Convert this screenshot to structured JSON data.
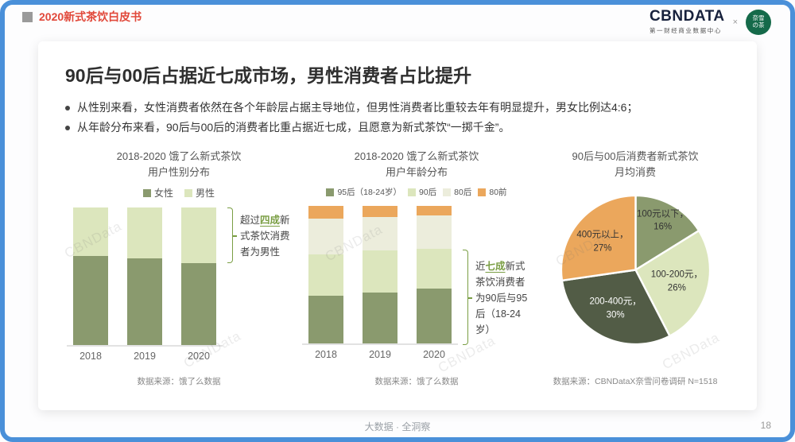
{
  "header": {
    "doc_title": "2020新式茶饮白皮书",
    "brand": "CBNDATA",
    "brand_sub": "第一财经商业数据中心",
    "brand_sep": "×",
    "partner_line1": "奈雪",
    "partner_line2": "の茶"
  },
  "slide": {
    "title": "90后与00后占据近七成市场，男性消费者占比提升",
    "bullets": [
      "从性别来看，女性消费者依然在各个年龄层占据主导地位，但男性消费者比重较去年有明显提升，男女比例达4:6；",
      "从年龄分布来看，90后与00后的消费者比重占据近七成，且愿意为新式茶饮“一掷千金”。"
    ]
  },
  "footer": {
    "tagline": "大数据 · 全洞察",
    "page_number": "18"
  },
  "watermark_text": "CBNData",
  "colors": {
    "border_blue": "#4A90D9",
    "accent_red": "#E1483A",
    "annotation_green": "#7A9E44",
    "logo_green": "#156A4A",
    "dark_olive": "#8A9A6E",
    "light_green": "#DCE6BD",
    "cream": "#ECEDDC",
    "orange": "#EBA75C",
    "deep_olive": "#525C46"
  },
  "chart_data": [
    {
      "type": "bar",
      "subtype": "stacked-100-percent",
      "title_line1": "2018-2020 饿了么新式茶饮",
      "title_line2": "用户性别分布",
      "categories": [
        "2018",
        "2019",
        "2020"
      ],
      "series": [
        {
          "name": "女性",
          "color": "#8A9A6E",
          "values": [
            65,
            63,
            60
          ]
        },
        {
          "name": "男性",
          "color": "#DCE6BD",
          "values": [
            35,
            37,
            40
          ]
        }
      ],
      "ylim": [
        0,
        100
      ],
      "legend_position": "top",
      "grid": false,
      "annotation": {
        "prefix": "超过",
        "highlight": "四成",
        "suffix": "新式茶饮消费者为男性"
      },
      "source": "数据来源：饿了么数据"
    },
    {
      "type": "bar",
      "subtype": "stacked-100-percent",
      "title_line1": "2018-2020 饿了么新式茶饮",
      "title_line2": "用户年龄分布",
      "categories": [
        "2018",
        "2019",
        "2020"
      ],
      "series": [
        {
          "name": "95后（18-24岁）",
          "color": "#8A9A6E",
          "values": [
            35,
            37,
            40
          ]
        },
        {
          "name": "90后",
          "color": "#DCE6BD",
          "values": [
            30,
            31,
            29
          ]
        },
        {
          "name": "80后",
          "color": "#ECEDDC",
          "values": [
            26,
            24,
            24
          ]
        },
        {
          "name": "80前",
          "color": "#EBA75C",
          "values": [
            9,
            8,
            7
          ]
        }
      ],
      "ylim": [
        0,
        100
      ],
      "legend_position": "top",
      "grid": false,
      "annotation": {
        "prefix": "近",
        "highlight": "七成",
        "suffix": "新式茶饮消费者为90后与95后（18-24岁）"
      },
      "source": "数据来源：饿了么数据"
    },
    {
      "type": "pie",
      "title_line1": "90后与00后消费者新式茶饮",
      "title_line2": "月均消费",
      "slices": [
        {
          "label": "100元以下",
          "value": 16,
          "color": "#8A9A6E",
          "text_color": "#333333"
        },
        {
          "label": "100-200元",
          "value": 26,
          "color": "#DCE6BD",
          "text_color": "#333333"
        },
        {
          "label": "200-400元",
          "value": 30,
          "color": "#525C46",
          "text_color": "#ffffff"
        },
        {
          "label": "400元以上",
          "value": 27,
          "color": "#EBA75C",
          "text_color": "#333333"
        }
      ],
      "source": "数据来源：CBNDataX奈雪问卷调研 N=1518"
    }
  ]
}
